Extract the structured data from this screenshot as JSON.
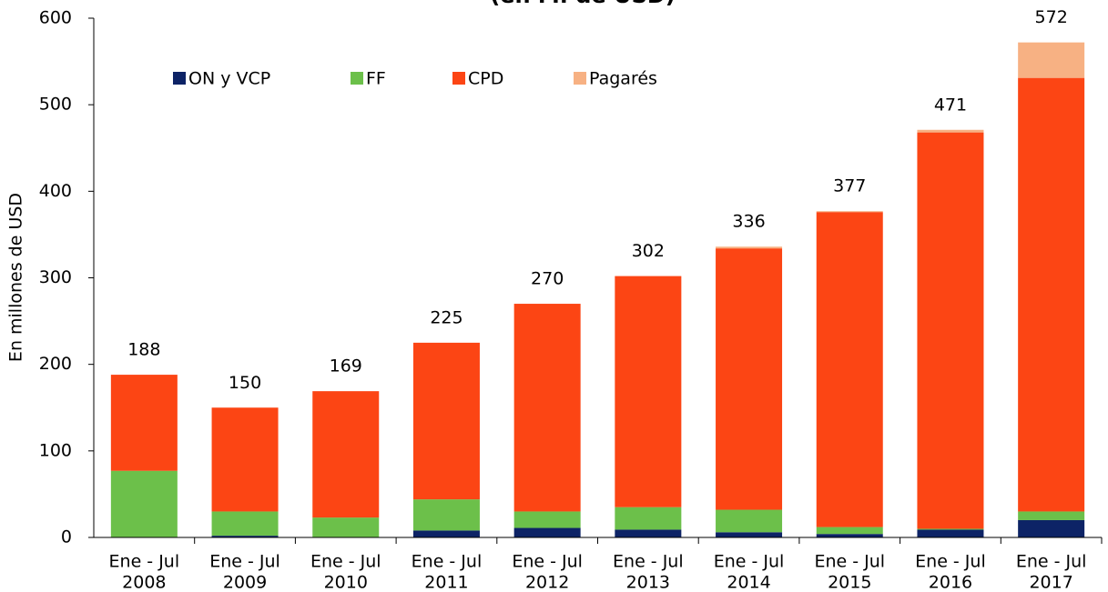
{
  "chart_data": {
    "type": "stacked_bar",
    "title": "(en M. de USD)",
    "y_label": "En millones de USD",
    "categories": [
      [
        "Ene - Jul",
        "2008"
      ],
      [
        "Ene - Jul",
        "2009"
      ],
      [
        "Ene - Jul",
        "2010"
      ],
      [
        "Ene - Jul",
        "2011"
      ],
      [
        "Ene - Jul",
        "2012"
      ],
      [
        "Ene - Jul",
        "2013"
      ],
      [
        "Ene - Jul",
        "2014"
      ],
      [
        "Ene - Jul",
        "2015"
      ],
      [
        "Ene - Jul",
        "2016"
      ],
      [
        "Ene - Jul",
        "2017"
      ]
    ],
    "series": [
      {
        "name": "ON y VCP",
        "color": "#0d2366",
        "values": [
          0,
          2,
          0,
          8,
          11,
          9,
          6,
          4,
          9,
          20
        ]
      },
      {
        "name": "FF",
        "color": "#6cc04a",
        "values": [
          77,
          28,
          23,
          36,
          19,
          26,
          26,
          8,
          1,
          10
        ]
      },
      {
        "name": "CPD",
        "color": "#fc4514",
        "values": [
          111,
          120,
          146,
          181,
          240,
          267,
          302,
          364,
          458,
          501
        ]
      },
      {
        "name": "Pagarés",
        "color": "#f7b183",
        "values": [
          0,
          0,
          0,
          0,
          0,
          0,
          2,
          1,
          3,
          41
        ]
      }
    ],
    "totals": [
      188,
      150,
      169,
      225,
      270,
      302,
      336,
      377,
      471,
      572
    ],
    "ylim": [
      0,
      600
    ],
    "yticks": [
      0,
      100,
      200,
      300,
      400,
      500,
      600
    ],
    "legend": "top"
  }
}
